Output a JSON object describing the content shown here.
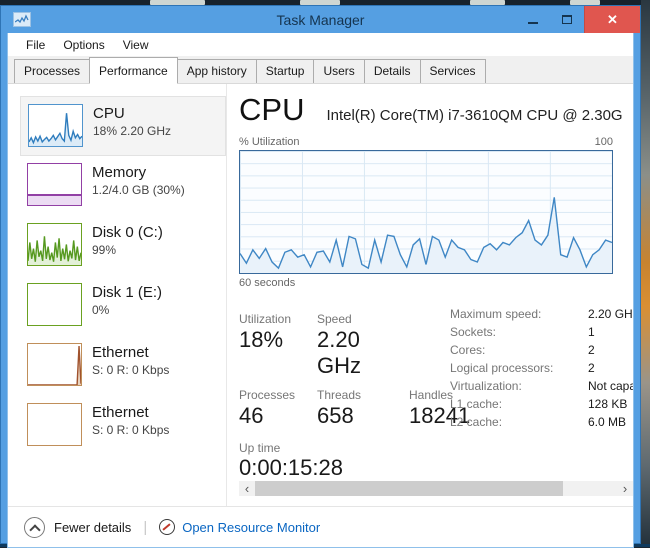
{
  "window": {
    "title": "Task Manager",
    "icons": {
      "minimize": "–",
      "close": "✕",
      "scroll_left": "‹",
      "scroll_right": "›"
    }
  },
  "menu": {
    "items": [
      "File",
      "Options",
      "View"
    ]
  },
  "tabs": {
    "items": [
      "Processes",
      "Performance",
      "App history",
      "Startup",
      "Users",
      "Details",
      "Services"
    ],
    "active": "Performance"
  },
  "sidebar": {
    "items": [
      {
        "title": "CPU",
        "subtitle": "18% 2.20 GHz"
      },
      {
        "title": "Memory",
        "subtitle": "1.2/4.0 GB (30%)"
      },
      {
        "title": "Disk 0 (C:)",
        "subtitle": "99%"
      },
      {
        "title": "Disk 1 (E:)",
        "subtitle": "0%"
      },
      {
        "title": "Ethernet",
        "subtitle": "S: 0 R: 0 Kbps"
      },
      {
        "title": "Ethernet",
        "subtitle": "S: 0 R: 0 Kbps"
      }
    ]
  },
  "main": {
    "title": "CPU",
    "subtitle": "Intel(R) Core(TM) i7-3610QM CPU @ 2.30G",
    "graph_top_left": "% Utilization",
    "graph_top_right": "100",
    "graph_bottom_left": "60 seconds",
    "stats": {
      "utilization_label": "Utilization",
      "utilization_value": "18%",
      "speed_label": "Speed",
      "speed_value": "2.20 GHz",
      "processes_label": "Processes",
      "processes_value": "46",
      "threads_label": "Threads",
      "threads_value": "658",
      "handles_label": "Handles",
      "handles_value": "18241",
      "uptime_label": "Up time",
      "uptime_value": "0:00:15:28"
    },
    "details": [
      {
        "label": "Maximum speed:",
        "value": "2.20 GHz"
      },
      {
        "label": "Sockets:",
        "value": "1"
      },
      {
        "label": "Cores:",
        "value": "2"
      },
      {
        "label": "Logical processors:",
        "value": "2"
      },
      {
        "label": "Virtualization:",
        "value": "Not capa.."
      },
      {
        "label": "L1 cache:",
        "value": "128 KB"
      },
      {
        "label": "L2 cache:",
        "value": "6.0 MB"
      }
    ]
  },
  "footer": {
    "fewer_details": "Fewer details",
    "open_resource_monitor": "Open Resource Monitor"
  },
  "chart_data": {
    "type": "line",
    "title": "CPU % Utilization over 60 seconds",
    "ylim": [
      0,
      100
    ],
    "xlabel": "60 seconds",
    "ylabel": "% Utilization",
    "series": [
      {
        "name": "cpu_utilization",
        "values": [
          16,
          8,
          19,
          12,
          20,
          9,
          4,
          17,
          19,
          13,
          15,
          5,
          17,
          18,
          9,
          27,
          5,
          30,
          28,
          7,
          4,
          27,
          9,
          31,
          30,
          15,
          5,
          23,
          28,
          7,
          30,
          27,
          13,
          27,
          21,
          19,
          11,
          9,
          21,
          24,
          19,
          25,
          23,
          29,
          33,
          43,
          27,
          23,
          31,
          62,
          15,
          13,
          29,
          19,
          5,
          15,
          19,
          27,
          25
        ]
      }
    ]
  },
  "charts": {
    "main": {
      "values": [
        16,
        8,
        19,
        12,
        20,
        9,
        4,
        17,
        19,
        13,
        15,
        5,
        17,
        18,
        9,
        27,
        5,
        30,
        28,
        7,
        4,
        27,
        9,
        31,
        30,
        15,
        5,
        23,
        28,
        7,
        30,
        27,
        13,
        27,
        21,
        19,
        11,
        9,
        21,
        24,
        19,
        25,
        23,
        29,
        33,
        43,
        27,
        23,
        31,
        62,
        15,
        13,
        29,
        19,
        5,
        15,
        19,
        27,
        25
      ],
      "color": "#3f87c5",
      "fill": "#e9f2fa"
    },
    "cpu_mini": {
      "values": [
        10,
        20,
        8,
        22,
        12,
        24,
        10,
        16,
        21,
        12,
        18,
        26,
        15,
        23,
        31,
        18,
        12,
        80,
        26,
        14,
        36,
        20,
        28,
        18,
        24
      ],
      "color": "#2f7dbe",
      "fill": "#dcebf7"
    },
    "disk0_mini": {
      "values": [
        10,
        55,
        15,
        40,
        8,
        60,
        20,
        35,
        10,
        70,
        15,
        45,
        12,
        30,
        8,
        55,
        18,
        65,
        10,
        40,
        14,
        50,
        9,
        35,
        16,
        60,
        12,
        45,
        10,
        30
      ],
      "color": "#56991f",
      "fill": "#e3f0d8"
    },
    "eth1_mini": {
      "values": [
        0,
        0,
        0,
        0,
        0,
        0,
        0,
        0,
        0,
        0,
        0,
        0,
        0,
        0,
        0,
        0,
        0,
        0,
        0,
        0,
        0,
        0,
        0,
        0,
        0,
        0,
        95,
        3
      ],
      "color": "#a0522d",
      "fill": "#e8d2bd"
    }
  }
}
